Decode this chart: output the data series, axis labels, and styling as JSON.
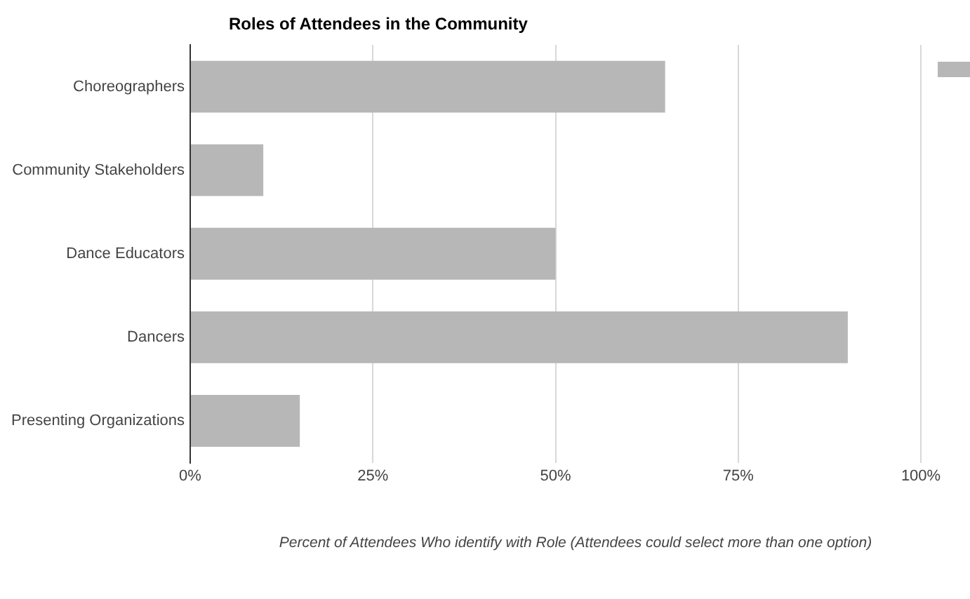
{
  "chart_data": {
    "type": "bar",
    "orientation": "horizontal",
    "title": "Roles of Attendees in the Community",
    "xlabel": "Percent of Attendees Who identify with Role (Attendees could select more than one option)",
    "categories": [
      "Choreographers",
      "Community Stakeholders",
      "Dance Educators",
      "Dancers",
      "Presenting Organizations"
    ],
    "values": [
      65,
      10,
      50,
      90,
      15
    ],
    "color": "#b7b7b7",
    "xlim": [
      0,
      100
    ],
    "xticks": [
      {
        "value": 0,
        "label": "0%"
      },
      {
        "value": 25,
        "label": "25%"
      },
      {
        "value": 50,
        "label": "50%"
      },
      {
        "value": 75,
        "label": "75%"
      },
      {
        "value": 100,
        "label": "100%"
      }
    ],
    "grid": "x"
  }
}
